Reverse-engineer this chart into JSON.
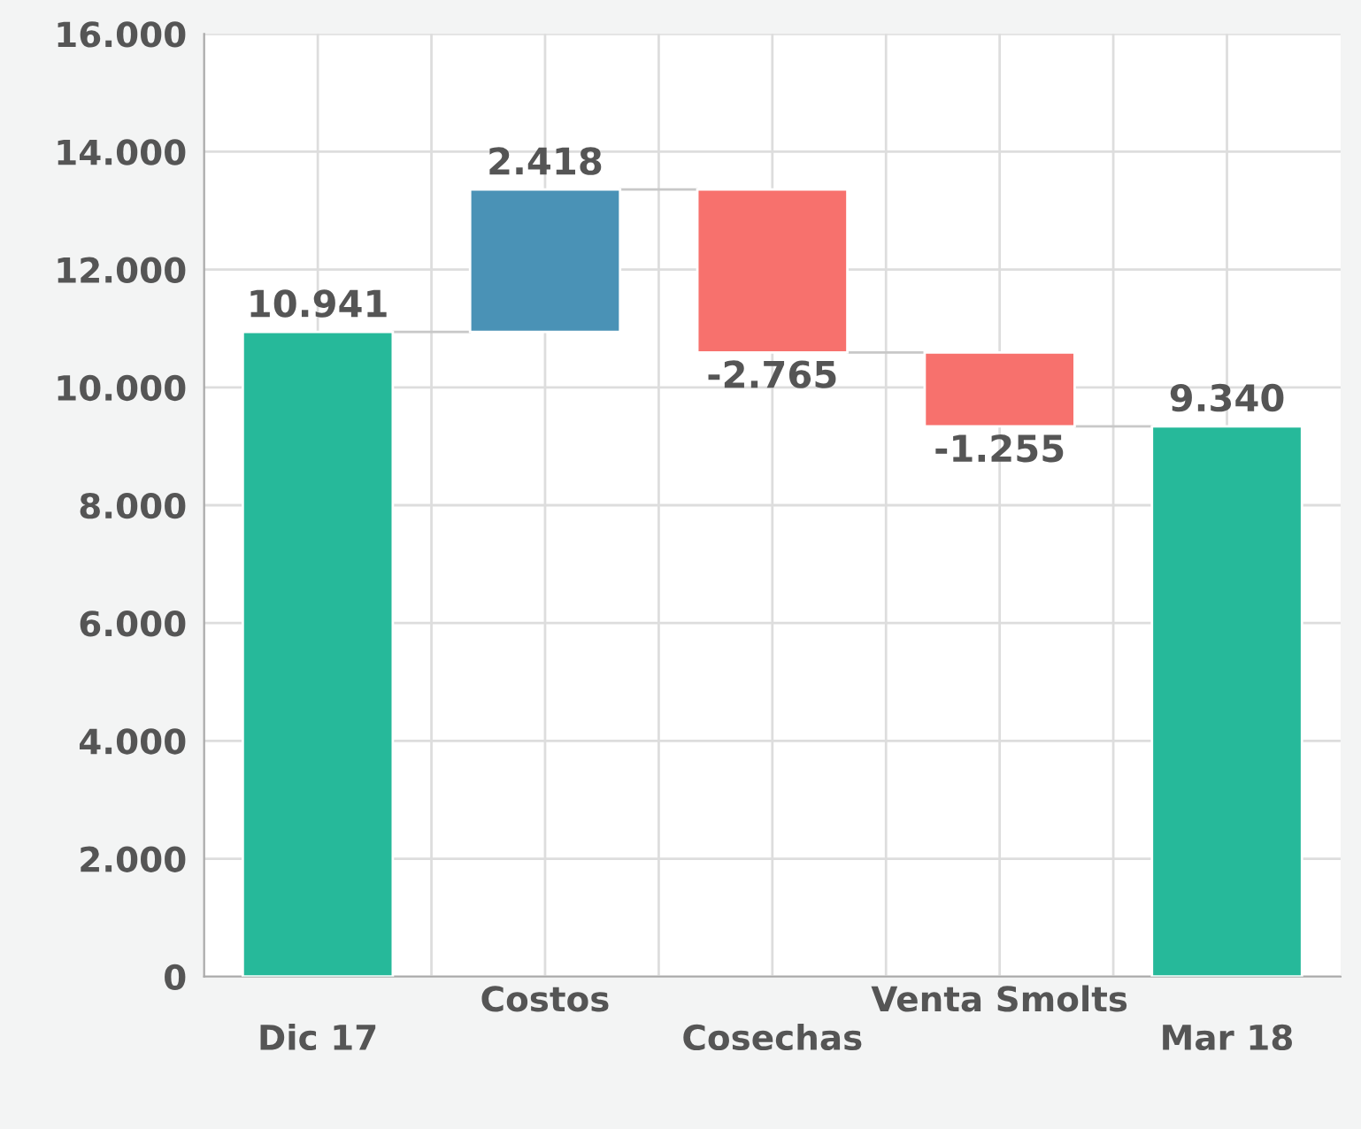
{
  "chart_data": {
    "type": "bar",
    "categories": [
      "Dic 17",
      "Costos",
      "Cosechas",
      "Venta Smolts",
      "Mar 18"
    ],
    "values": [
      10941,
      2418,
      -2765,
      -1255,
      9340
    ],
    "base": [
      0,
      10941,
      13359,
      10594,
      0
    ],
    "colors": [
      "#26b99a",
      "#4a92b6",
      "#f7716d",
      "#f7716d",
      "#26b99a"
    ],
    "value_labels": [
      "10.941",
      "2.418",
      "-2.765",
      "-1.255",
      "9.340"
    ],
    "ylim": [
      0,
      16000
    ],
    "yticks": [
      {
        "value": 0,
        "label": "0"
      },
      {
        "value": 2000,
        "label": "2.000"
      },
      {
        "value": 4000,
        "label": "4.000"
      },
      {
        "value": 6000,
        "label": "6.000"
      },
      {
        "value": 8000,
        "label": "8.000"
      },
      {
        "value": 10000,
        "label": "10.000"
      },
      {
        "value": 12000,
        "label": "12.000"
      },
      {
        "value": 14000,
        "label": "14.000"
      },
      {
        "value": 16000,
        "label": "16.000"
      }
    ],
    "grid": true
  }
}
